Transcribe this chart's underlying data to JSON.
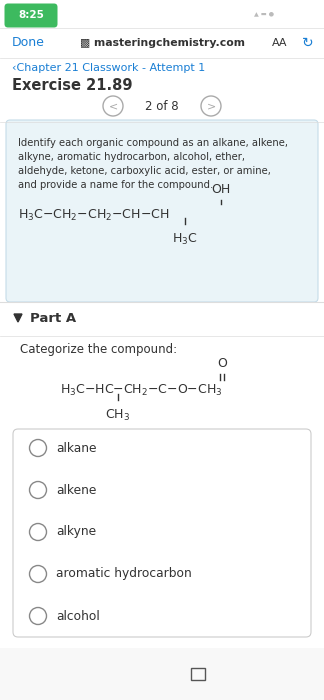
{
  "bg_color": "#ffffff",
  "status_bar_time": "8:25",
  "status_bar_bg": "#3dba5f",
  "nav_done": "Done",
  "nav_url": "▩ masteringchemistry.com",
  "nav_aa": "AA",
  "chapter_text": "‹Chapter 21 Classwork - Attempt 1",
  "exercise_text": "Exercise 21.89",
  "page_indicator": "2 of 8",
  "question_bg": "#eaf4f8",
  "question_text_line1": "Identify each organic compound as an alkane, alkene,",
  "question_text_line2": "alkyne, aromatic hydrocarbon, alcohol, ether,",
  "question_text_line3": "aldehyde, ketone, carboxylic acid, ester, or amine,",
  "question_text_line4": "and provide a name for the compound.",
  "part_a_text": "Part A",
  "categorize_text": "Categorize the compound:",
  "options": [
    "alkane",
    "alkene",
    "alkyne",
    "aromatic hydrocarbon",
    "alcohol"
  ],
  "options_box_bg": "#ffffff",
  "bottom_nav_bg": "#f8f8f8",
  "chapter_color": "#1a7fd4",
  "done_color": "#1a7fd4",
  "nav_border": "#dddddd",
  "text_color": "#333333",
  "light_text": "#888888",
  "refresh_color": "#1a7fd4"
}
